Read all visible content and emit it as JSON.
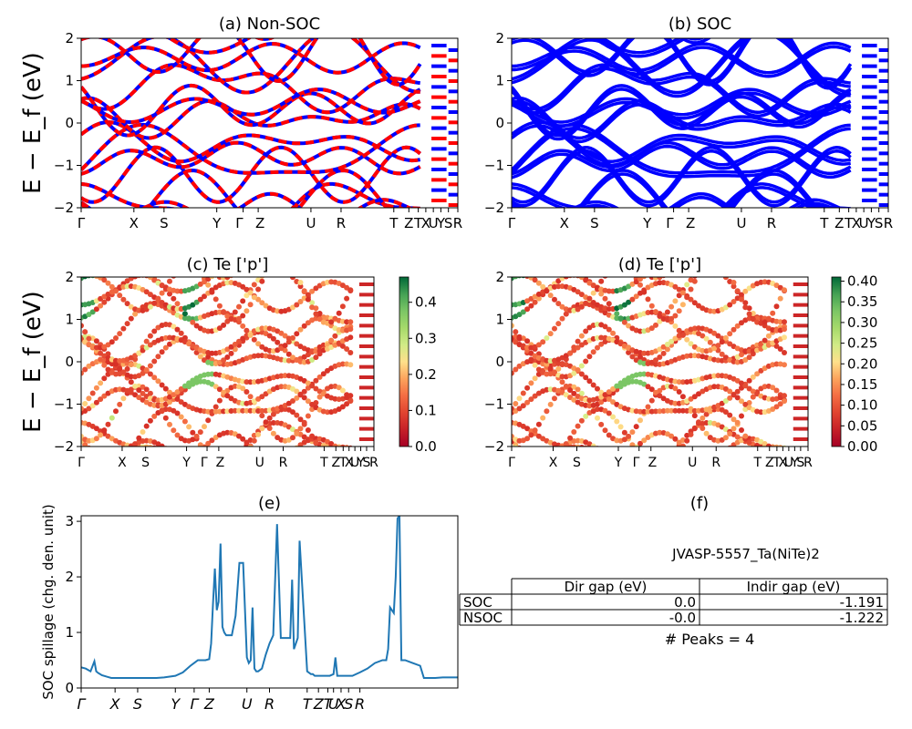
{
  "panels": {
    "a": {
      "title": "(a) Non-SOC",
      "colors": {
        "nonsoc": "#ff0000",
        "soc": "#0000ff"
      }
    },
    "b": {
      "title": "(b) SOC",
      "color": "#0000ff"
    },
    "c": {
      "title": "(c)  Te ['p']"
    },
    "d": {
      "title": "(d) Te ['p']"
    },
    "e": {
      "title": "(e)"
    },
    "f": {
      "title": "(f)"
    }
  },
  "band_axis": {
    "ylabel": "E − E_f (eV)",
    "yticks": [
      "2",
      "1",
      "0",
      "−1",
      "−2"
    ],
    "ylim": [
      -2,
      2
    ],
    "kpoints": [
      "Γ",
      "X",
      "S",
      "Y",
      "Γ",
      "Z",
      "U",
      "R",
      "T",
      "Z",
      "T",
      "X",
      "U",
      "Y",
      "S",
      "R"
    ]
  },
  "colorbars": {
    "c": {
      "ticks": [
        "0.0",
        "0.1",
        "0.2",
        "0.3",
        "0.4"
      ],
      "range": [
        0,
        0.47
      ],
      "colormap": "RdYlGn"
    },
    "d": {
      "ticks": [
        "0.00",
        "0.05",
        "0.10",
        "0.15",
        "0.20",
        "0.25",
        "0.30",
        "0.35",
        "0.40"
      ],
      "range": [
        0,
        0.41
      ],
      "colormap": "RdYlGn"
    }
  },
  "chart_data": [
    {
      "type": "line",
      "id": "a",
      "title": "(a) Non-SOC",
      "ylabel": "E − E_f (eV)",
      "ylim": [
        -2,
        2
      ],
      "series": [
        {
          "values": "band energies (eV)"
        },
        {
          "values": "band energies (eV)"
        }
      ]
    },
    {
      "type": "line",
      "id": "b",
      "title": "(b) SOC",
      "ylim": [
        -2,
        2
      ]
    },
    {
      "type": "scatter",
      "id": "c",
      "title": "(c)  Te ['p']",
      "ylabel": "E − E_f (eV)",
      "ylim": [
        -2,
        2
      ],
      "colorbar": [
        0,
        0.47
      ]
    },
    {
      "type": "scatter",
      "id": "d",
      "title": "(d) Te ['p']",
      "ylim": [
        -2,
        2
      ],
      "colorbar": [
        0,
        0.41
      ]
    },
    {
      "type": "line",
      "id": "e",
      "title": "(e)",
      "ylabel": "SOC spillage (chg. den. unit)",
      "yticks": [
        "0",
        "1",
        "2",
        "3"
      ],
      "ylim": [
        0,
        3.1
      ],
      "xticklabels": [
        "Γ",
        "X",
        "S",
        "Y",
        "Γ",
        "Z",
        "U",
        "R",
        "T",
        "Z",
        "T",
        "U",
        "X",
        "S",
        "R"
      ],
      "color": "#1f77b4",
      "x": [
        0,
        0.012,
        0.025,
        0.035,
        0.04,
        0.045,
        0.055,
        0.07,
        0.08,
        0.09,
        0.12,
        0.15,
        0.18,
        0.2,
        0.22,
        0.25,
        0.27,
        0.29,
        0.3,
        0.31,
        0.33,
        0.34,
        0.345,
        0.35,
        0.355,
        0.36,
        0.365,
        0.37,
        0.375,
        0.38,
        0.385,
        0.39,
        0.4,
        0.41,
        0.42,
        0.425,
        0.43,
        0.44,
        0.445,
        0.45,
        0.455,
        0.46,
        0.465,
        0.47,
        0.48,
        0.49,
        0.5,
        0.51,
        0.52,
        0.53,
        0.54,
        0.545,
        0.55,
        0.555,
        0.56,
        0.565,
        0.575,
        0.58,
        0.6,
        0.61,
        0.615,
        0.62,
        0.625,
        0.63,
        0.64,
        0.66,
        0.67,
        0.675,
        0.68,
        0.69,
        0.7,
        0.72,
        0.74,
        0.76,
        0.78,
        0.8,
        0.8,
        0.81,
        0.815,
        0.82,
        0.83,
        0.835,
        0.84,
        0.845,
        0.85,
        0.86,
        0.88,
        0.9,
        0.91,
        0.92,
        0.94,
        0.96,
        1.0
      ],
      "values": [
        0.37,
        0.35,
        0.3,
        0.48,
        0.3,
        0.27,
        0.23,
        0.2,
        0.18,
        0.18,
        0.18,
        0.18,
        0.18,
        0.18,
        0.19,
        0.22,
        0.28,
        0.4,
        0.45,
        0.5,
        0.5,
        0.52,
        0.8,
        1.5,
        2.15,
        1.4,
        1.55,
        2.6,
        1.1,
        1.0,
        0.95,
        0.95,
        0.95,
        1.3,
        2.25,
        2.25,
        2.25,
        0.55,
        0.45,
        0.5,
        1.45,
        0.35,
        0.3,
        0.3,
        0.35,
        0.6,
        0.8,
        0.95,
        2.95,
        0.9,
        0.9,
        0.9,
        0.9,
        0.9,
        1.95,
        0.7,
        0.9,
        2.65,
        0.3,
        0.25,
        0.25,
        0.22,
        0.22,
        0.22,
        0.22,
        0.22,
        0.25,
        0.55,
        0.22,
        0.22,
        0.22,
        0.22,
        0.28,
        0.35,
        0.45,
        0.5,
        0.5,
        0.5,
        0.7,
        1.45,
        1.35,
        2.0,
        3.05,
        3.1,
        0.5,
        0.5,
        0.45,
        0.4,
        0.18,
        0.18,
        0.18,
        0.19,
        0.19
      ]
    },
    {
      "type": "table",
      "id": "f",
      "title": "(f)",
      "subtitle": "JVASP-5557_Ta(NiTe)2",
      "columns": [
        "",
        "Dir gap (eV)",
        "Indir gap (eV)"
      ],
      "rows": [
        [
          "SOC",
          "0.0",
          "-1.191"
        ],
        [
          "NSOC",
          "-0.0",
          "-1.222"
        ]
      ],
      "footer": "# Peaks = 4"
    }
  ]
}
